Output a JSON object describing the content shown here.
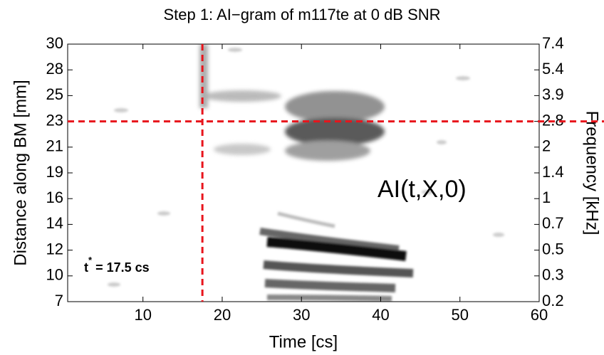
{
  "chart_data": {
    "type": "heatmap",
    "title": "Step 1: AI−gram of m117te at 0 dB SNR",
    "x_label": "Time [cs]",
    "y_label": "Distance along BM [mm]",
    "y2_label": "Frequency [kHz]",
    "xlim": [
      0.5,
      60
    ],
    "xticks": [
      10,
      20,
      30,
      40,
      50,
      60
    ],
    "ylim": [
      7,
      30
    ],
    "yticks": [
      7,
      10,
      12,
      14,
      16,
      19,
      21,
      23,
      25,
      28,
      30
    ],
    "y2lim": [
      0.2,
      7.4
    ],
    "y2ticks": [
      0.2,
      0.3,
      0.5,
      0.7,
      1,
      1.4,
      2,
      2.8,
      3.9,
      5.4,
      7.4
    ],
    "y_scale": "tick-spaced",
    "colormap": "gray-reversed",
    "reference_lines": {
      "x": 17.5,
      "y": 23,
      "color": "#e8141c"
    },
    "annotations": [
      {
        "text": "AI(t,X,0)"
      },
      {
        "text": "t",
        "superscript": "*",
        "suffix": " = 17.5 cs"
      }
    ]
  }
}
